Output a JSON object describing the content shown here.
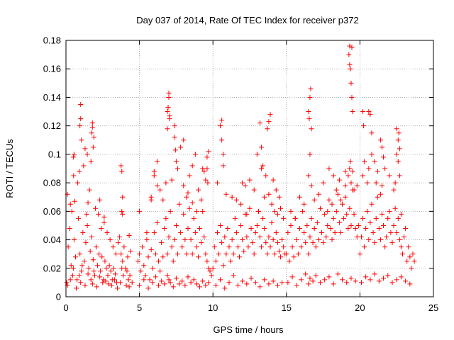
{
  "chart_data": {
    "type": "scatter",
    "title": "Day 037 of 2014, Rate Of TEC Index for receiver p372",
    "xlabel": "GPS time / hours",
    "ylabel": "ROTI / TECUs",
    "xlim": [
      0,
      25
    ],
    "ylim": [
      0,
      0.18
    ],
    "xticks": [
      0,
      5,
      10,
      15,
      20,
      25
    ],
    "yticks": [
      0,
      0.02,
      0.04,
      0.06,
      0.08,
      0.1,
      0.12,
      0.14,
      0.16,
      0.18
    ],
    "xtick_labels": [
      "0",
      "5",
      "10",
      "15",
      "20",
      "25"
    ],
    "ytick_labels": [
      "0",
      "0.02",
      "0.04",
      "0.06",
      "0.08",
      "0.1",
      "0.12",
      "0.14",
      "0.16",
      "0.18"
    ],
    "grid": true,
    "marker": "+",
    "color": "#ff0000",
    "series": [
      {
        "x": [
          0.05,
          0.15,
          0.25,
          0.35,
          0.45,
          0.55,
          0.65,
          0.75,
          0.85,
          0.95,
          1.05,
          1.15,
          1.25,
          1.35,
          1.45,
          1.55,
          1.65,
          1.75,
          1.85,
          1.95,
          2.05,
          2.15,
          2.25,
          2.35,
          2.45,
          2.55,
          2.65,
          2.75,
          2.85,
          2.95,
          3.05,
          3.15,
          3.25,
          3.35,
          3.45,
          3.55,
          3.65,
          3.75,
          3.85,
          3.95,
          4.05,
          4.15,
          4.25,
          4.35,
          4.5,
          0.1,
          0.3,
          0.5,
          0.7,
          0.9,
          1.0,
          1.1,
          1.3,
          1.5,
          1.7,
          1.8,
          1.9,
          2.1,
          2.3,
          2.5,
          2.7,
          2.9,
          3.1,
          3.3,
          3.5,
          3.7,
          3.8,
          3.9,
          4.1,
          4.3,
          0.1,
          0.3,
          0.5,
          0.52,
          0.6,
          0.8,
          0.95,
          1.0,
          1.05,
          1.2,
          1.4,
          1.45,
          1.6,
          1.75,
          1.8,
          1.85,
          2.0,
          2.2,
          2.4,
          2.6,
          2.8,
          3.0,
          3.2,
          3.4,
          3.75,
          3.8,
          3.85,
          4.2,
          4.4,
          0.4,
          0.55,
          0.9,
          1.0,
          1.3,
          1.5,
          1.7,
          1.8,
          1.9,
          2.3,
          2.6,
          3.8,
          3.85,
          4.3,
          4.9,
          5.0,
          5.1,
          5.2,
          5.3,
          5.4,
          5.5,
          5.6,
          5.7,
          5.8,
          5.9,
          6.0,
          6.1,
          6.2,
          6.3,
          6.4,
          6.5,
          6.6,
          6.7,
          6.8,
          6.9,
          7.0,
          7.1,
          7.2,
          7.3,
          7.4,
          7.5,
          7.6,
          7.7,
          7.8,
          7.9,
          8.0,
          8.1,
          8.2,
          8.3,
          8.4,
          8.5,
          8.6,
          8.7,
          8.8,
          8.9,
          9.0,
          9.1,
          9.2,
          9.3,
          9.4,
          9.5,
          9.6,
          9.7,
          9.8,
          9.9,
          5.0,
          5.3,
          5.6,
          5.9,
          6.1,
          6.3,
          6.5,
          6.7,
          6.9,
          7.0,
          7.1,
          7.3,
          7.5,
          7.7,
          7.9,
          8.1,
          8.3,
          8.5,
          8.7,
          8.9,
          9.1,
          9.3,
          9.5,
          9.7,
          5.0,
          5.5,
          5.8,
          6.0,
          6.2,
          6.4,
          6.6,
          6.8,
          6.9,
          7.0,
          7.05,
          7.2,
          7.4,
          7.6,
          7.8,
          8.0,
          8.2,
          8.4,
          8.6,
          8.8,
          9.0,
          9.2,
          9.4,
          9.6,
          9.7,
          5.8,
          6.0,
          6.2,
          6.9,
          6.95,
          7.0,
          7.05,
          7.4,
          7.45,
          7.5,
          8.0,
          8.3,
          8.6,
          8.9,
          9.3,
          9.5,
          9.6,
          9.65,
          10.0,
          10.1,
          10.2,
          10.3,
          10.4,
          10.5,
          10.6,
          10.7,
          10.8,
          10.9,
          11.0,
          11.1,
          11.2,
          11.3,
          11.4,
          11.5,
          11.6,
          11.7,
          11.8,
          11.9,
          12.0,
          12.1,
          12.2,
          12.3,
          12.4,
          12.5,
          12.6,
          12.7,
          12.8,
          12.9,
          13.0,
          13.1,
          13.2,
          13.3,
          13.4,
          13.5,
          13.6,
          13.7,
          13.8,
          13.9,
          14.0,
          14.1,
          14.2,
          14.3,
          14.4,
          14.5,
          14.6,
          14.7,
          14.8,
          14.9,
          10.2,
          10.5,
          10.8,
          11.1,
          11.4,
          11.7,
          12.0,
          12.3,
          12.6,
          12.9,
          13.2,
          13.5,
          13.8,
          14.1,
          14.4,
          14.7,
          10.3,
          10.6,
          10.7,
          10.9,
          11.3,
          11.6,
          11.9,
          12.2,
          12.5,
          12.8,
          13.0,
          13.1,
          13.3,
          13.5,
          13.6,
          13.8,
          14.0,
          14.2,
          14.4,
          14.6,
          14.8,
          10.5,
          10.6,
          10.7,
          12.0,
          12.3,
          13.2,
          13.3,
          13.4,
          13.7,
          13.8,
          13.9,
          14.1,
          14.3,
          14.5,
          15.0,
          15.1,
          15.2,
          15.3,
          15.4,
          15.5,
          15.6,
          15.7,
          15.8,
          15.9,
          16.0,
          16.1,
          16.2,
          16.3,
          16.4,
          16.5,
          16.6,
          16.7,
          16.8,
          16.9,
          17.0,
          17.1,
          17.2,
          17.3,
          17.4,
          17.5,
          17.6,
          17.7,
          17.8,
          17.9,
          18.0,
          18.1,
          18.2,
          18.3,
          18.4,
          18.5,
          18.6,
          18.7,
          18.8,
          18.9,
          19.0,
          19.1,
          19.2,
          19.3,
          19.4,
          19.5,
          19.6,
          19.7,
          19.8,
          19.9,
          15.1,
          15.4,
          15.7,
          16.0,
          16.3,
          16.5,
          16.6,
          16.8,
          17.0,
          17.3,
          17.6,
          17.9,
          18.2,
          18.5,
          18.8,
          19.1,
          19.4,
          19.7,
          15.3,
          15.6,
          15.9,
          16.2,
          16.5,
          16.6,
          16.7,
          16.9,
          17.2,
          17.5,
          17.8,
          18.1,
          18.4,
          18.7,
          19.0,
          19.2,
          19.3,
          19.35,
          19.4,
          19.5,
          19.6,
          19.8,
          16.5,
          16.55,
          16.6,
          16.65,
          16.7,
          17.9,
          18.2,
          18.6,
          19.0,
          19.25,
          19.3,
          19.35,
          19.4,
          19.45,
          19.5,
          19.3,
          19.45,
          20.0,
          20.1,
          20.2,
          20.3,
          20.4,
          20.5,
          20.6,
          20.7,
          20.8,
          20.9,
          21.0,
          21.1,
          21.2,
          21.3,
          21.4,
          21.5,
          21.6,
          21.7,
          21.8,
          21.9,
          22.0,
          22.1,
          22.2,
          22.3,
          22.4,
          22.5,
          22.6,
          22.7,
          22.8,
          22.9,
          23.0,
          23.1,
          23.2,
          23.3,
          23.4,
          23.5,
          23.6,
          23.7,
          20.1,
          20.4,
          20.7,
          21.0,
          21.3,
          21.6,
          21.9,
          22.2,
          22.5,
          22.8,
          23.1,
          23.4,
          20.2,
          20.3,
          20.5,
          20.6,
          20.8,
          21.0,
          21.1,
          21.2,
          21.4,
          21.5,
          21.7,
          22.0,
          22.3,
          22.4,
          22.5,
          22.6,
          22.7,
          22.8,
          20.2,
          20.25,
          20.6,
          20.7,
          20.8,
          21.4,
          21.5,
          21.6,
          22.5,
          22.6,
          22.65,
          22.7
        ],
        "y": [
          0.01,
          0.035,
          0.048,
          0.022,
          0.015,
          0.04,
          0.028,
          0.012,
          0.055,
          0.03,
          0.018,
          0.045,
          0.025,
          0.038,
          0.05,
          0.02,
          0.032,
          0.042,
          0.026,
          0.015,
          0.035,
          0.022,
          0.03,
          0.018,
          0.028,
          0.012,
          0.025,
          0.02,
          0.015,
          0.022,
          0.018,
          0.012,
          0.02,
          0.016,
          0.01,
          0.038,
          0.042,
          0.03,
          0.025,
          0.035,
          0.02,
          0.018,
          0.012,
          0.015,
          0.01,
          0.008,
          0.012,
          0.02,
          0.006,
          0.015,
          0.01,
          0.022,
          0.008,
          0.016,
          0.012,
          0.009,
          0.018,
          0.007,
          0.014,
          0.01,
          0.011,
          0.009,
          0.008,
          0.012,
          0.006,
          0.01,
          0.02,
          0.015,
          0.008,
          0.007,
          0.072,
          0.065,
          0.098,
          0.085,
          0.067,
          0.08,
          0.12,
          0.135,
          0.11,
          0.092,
          0.058,
          0.1,
          0.075,
          0.115,
          0.122,
          0.105,
          0.062,
          0.058,
          0.048,
          0.052,
          0.045,
          0.04,
          0.035,
          0.03,
          0.092,
          0.088,
          0.07,
          0.028,
          0.032,
          0.06,
          0.1,
          0.088,
          0.125,
          0.104,
          0.066,
          0.095,
          0.119,
          0.112,
          0.068,
          0.056,
          0.06,
          0.058,
          0.043,
          0.025,
          0.03,
          0.018,
          0.035,
          0.022,
          0.015,
          0.04,
          0.028,
          0.012,
          0.033,
          0.02,
          0.045,
          0.03,
          0.052,
          0.025,
          0.018,
          0.038,
          0.028,
          0.048,
          0.055,
          0.03,
          0.042,
          0.06,
          0.035,
          0.025,
          0.04,
          0.05,
          0.03,
          0.065,
          0.045,
          0.035,
          0.058,
          0.04,
          0.03,
          0.048,
          0.062,
          0.04,
          0.03,
          0.055,
          0.045,
          0.035,
          0.028,
          0.048,
          0.038,
          0.06,
          0.042,
          0.03,
          0.025,
          0.02,
          0.018,
          0.015,
          0.008,
          0.012,
          0.006,
          0.01,
          0.014,
          0.008,
          0.011,
          0.009,
          0.015,
          0.012,
          0.01,
          0.007,
          0.013,
          0.009,
          0.011,
          0.008,
          0.014,
          0.01,
          0.012,
          0.009,
          0.007,
          0.011,
          0.008,
          0.01,
          0.06,
          0.045,
          0.068,
          0.088,
          0.095,
          0.075,
          0.068,
          0.08,
          0.13,
          0.14,
          0.125,
          0.082,
          0.112,
          0.09,
          0.105,
          0.078,
          0.07,
          0.085,
          0.092,
          0.1,
          0.075,
          0.068,
          0.088,
          0.098,
          0.102,
          0.07,
          0.085,
          0.078,
          0.118,
          0.133,
          0.143,
          0.127,
          0.12,
          0.103,
          0.095,
          0.11,
          0.073,
          0.066,
          0.06,
          0.09,
          0.082,
          0.09,
          0.08,
          0.02,
          0.035,
          0.025,
          0.045,
          0.03,
          0.05,
          0.038,
          0.022,
          0.042,
          0.03,
          0.048,
          0.035,
          0.025,
          0.04,
          0.03,
          0.055,
          0.045,
          0.035,
          0.028,
          0.05,
          0.04,
          0.032,
          0.058,
          0.042,
          0.035,
          0.062,
          0.048,
          0.038,
          0.03,
          0.045,
          0.05,
          0.06,
          0.042,
          0.035,
          0.055,
          0.048,
          0.038,
          0.03,
          0.042,
          0.035,
          0.052,
          0.04,
          0.03,
          0.045,
          0.038,
          0.032,
          0.028,
          0.04,
          0.035,
          0.03,
          0.008,
          0.012,
          0.006,
          0.01,
          0.015,
          0.008,
          0.011,
          0.009,
          0.013,
          0.01,
          0.007,
          0.012,
          0.009,
          0.011,
          0.008,
          0.01,
          0.08,
          0.11,
          0.092,
          0.072,
          0.07,
          0.068,
          0.065,
          0.078,
          0.082,
          0.075,
          0.1,
          0.06,
          0.09,
          0.07,
          0.085,
          0.072,
          0.065,
          0.06,
          0.058,
          0.062,
          0.055,
          0.12,
          0.124,
          0.1,
          0.08,
          0.058,
          0.122,
          0.105,
          0.092,
          0.118,
          0.123,
          0.128,
          0.082,
          0.075,
          0.07,
          0.03,
          0.045,
          0.025,
          0.05,
          0.035,
          0.028,
          0.055,
          0.04,
          0.03,
          0.048,
          0.035,
          0.06,
          0.045,
          0.038,
          0.05,
          0.03,
          0.042,
          0.055,
          0.038,
          0.048,
          0.035,
          0.052,
          0.04,
          0.062,
          0.045,
          0.038,
          0.058,
          0.042,
          0.05,
          0.068,
          0.048,
          0.04,
          0.055,
          0.045,
          0.06,
          0.072,
          0.052,
          0.045,
          0.065,
          0.055,
          0.07,
          0.058,
          0.048,
          0.062,
          0.05,
          0.075,
          0.058,
          0.048,
          0.042,
          0.05,
          0.01,
          0.014,
          0.008,
          0.012,
          0.016,
          0.009,
          0.013,
          0.011,
          0.015,
          0.01,
          0.012,
          0.014,
          0.009,
          0.016,
          0.012,
          0.01,
          0.013,
          0.011,
          0.06,
          0.055,
          0.07,
          0.065,
          0.085,
          0.1,
          0.078,
          0.068,
          0.072,
          0.08,
          0.06,
          0.065,
          0.075,
          0.068,
          0.078,
          0.085,
          0.09,
          0.095,
          0.08,
          0.088,
          0.075,
          0.078,
          0.13,
          0.125,
          0.14,
          0.146,
          0.118,
          0.09,
          0.085,
          0.082,
          0.088,
          0.17,
          0.176,
          0.16,
          0.15,
          0.14,
          0.13,
          0.163,
          0.175,
          0.03,
          0.042,
          0.055,
          0.035,
          0.048,
          0.06,
          0.04,
          0.052,
          0.065,
          0.045,
          0.038,
          0.055,
          0.07,
          0.048,
          0.04,
          0.058,
          0.05,
          0.035,
          0.042,
          0.055,
          0.06,
          0.045,
          0.038,
          0.05,
          0.062,
          0.045,
          0.055,
          0.04,
          0.035,
          0.03,
          0.042,
          0.048,
          0.025,
          0.035,
          0.028,
          0.02,
          0.03,
          0.025,
          0.01,
          0.014,
          0.012,
          0.016,
          0.011,
          0.013,
          0.015,
          0.01,
          0.012,
          0.014,
          0.011,
          0.009,
          0.085,
          0.095,
          0.08,
          0.09,
          0.1,
          0.095,
          0.08,
          0.088,
          0.072,
          0.078,
          0.09,
          0.085,
          0.075,
          0.08,
          0.1,
          0.095,
          0.085,
          0.058,
          0.13,
          0.12,
          0.13,
          0.128,
          0.115,
          0.11,
          0.105,
          0.098,
          0.118,
          0.11,
          0.115,
          0.104
        ]
      }
    ]
  }
}
